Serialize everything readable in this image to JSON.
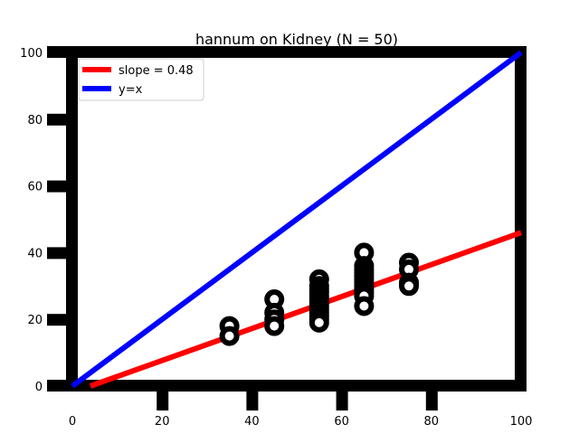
{
  "chart_data": {
    "type": "scatter",
    "title": "hannum on Kidney (N = 50)",
    "xlabel": "",
    "ylabel": "",
    "xlim": [
      0,
      100
    ],
    "ylim": [
      0,
      100
    ],
    "x_ticks": [
      0,
      20,
      40,
      60,
      80,
      100
    ],
    "y_ticks": [
      0,
      20,
      40,
      60,
      80,
      100
    ],
    "grid": false,
    "legend_position": "top-left",
    "legend": [
      {
        "label": "slope = 0.48",
        "color": "#ff0000"
      },
      {
        "label": "y=x",
        "color": "#0000ff"
      }
    ],
    "points": [
      {
        "x": 35,
        "y": 18
      },
      {
        "x": 35,
        "y": 15
      },
      {
        "x": 45,
        "y": 26
      },
      {
        "x": 45,
        "y": 22
      },
      {
        "x": 45,
        "y": 20
      },
      {
        "x": 45,
        "y": 18
      },
      {
        "x": 55,
        "y": 32
      },
      {
        "x": 55,
        "y": 30
      },
      {
        "x": 55,
        "y": 29
      },
      {
        "x": 55,
        "y": 28
      },
      {
        "x": 55,
        "y": 27
      },
      {
        "x": 55,
        "y": 26
      },
      {
        "x": 55,
        "y": 25
      },
      {
        "x": 55,
        "y": 24
      },
      {
        "x": 55,
        "y": 23
      },
      {
        "x": 55,
        "y": 22
      },
      {
        "x": 55,
        "y": 21
      },
      {
        "x": 55,
        "y": 20
      },
      {
        "x": 55,
        "y": 19
      },
      {
        "x": 65,
        "y": 40
      },
      {
        "x": 65,
        "y": 36
      },
      {
        "x": 65,
        "y": 35
      },
      {
        "x": 65,
        "y": 34
      },
      {
        "x": 65,
        "y": 33
      },
      {
        "x": 65,
        "y": 32
      },
      {
        "x": 65,
        "y": 31
      },
      {
        "x": 65,
        "y": 30
      },
      {
        "x": 65,
        "y": 29
      },
      {
        "x": 65,
        "y": 28
      },
      {
        "x": 65,
        "y": 27
      },
      {
        "x": 65,
        "y": 24
      },
      {
        "x": 75,
        "y": 37
      },
      {
        "x": 75,
        "y": 35
      },
      {
        "x": 75,
        "y": 31
      },
      {
        "x": 75,
        "y": 30
      }
    ],
    "lines": [
      {
        "name": "slope = 0.48",
        "color": "#ff0000",
        "x": [
          4,
          100
        ],
        "y": [
          0,
          46
        ]
      },
      {
        "name": "y=x",
        "color": "#0000ff",
        "x": [
          0,
          100
        ],
        "y": [
          0,
          100
        ]
      }
    ],
    "colors": {
      "frame": "#000000",
      "marker": "#000000",
      "marker_center": "#ffffff"
    }
  }
}
